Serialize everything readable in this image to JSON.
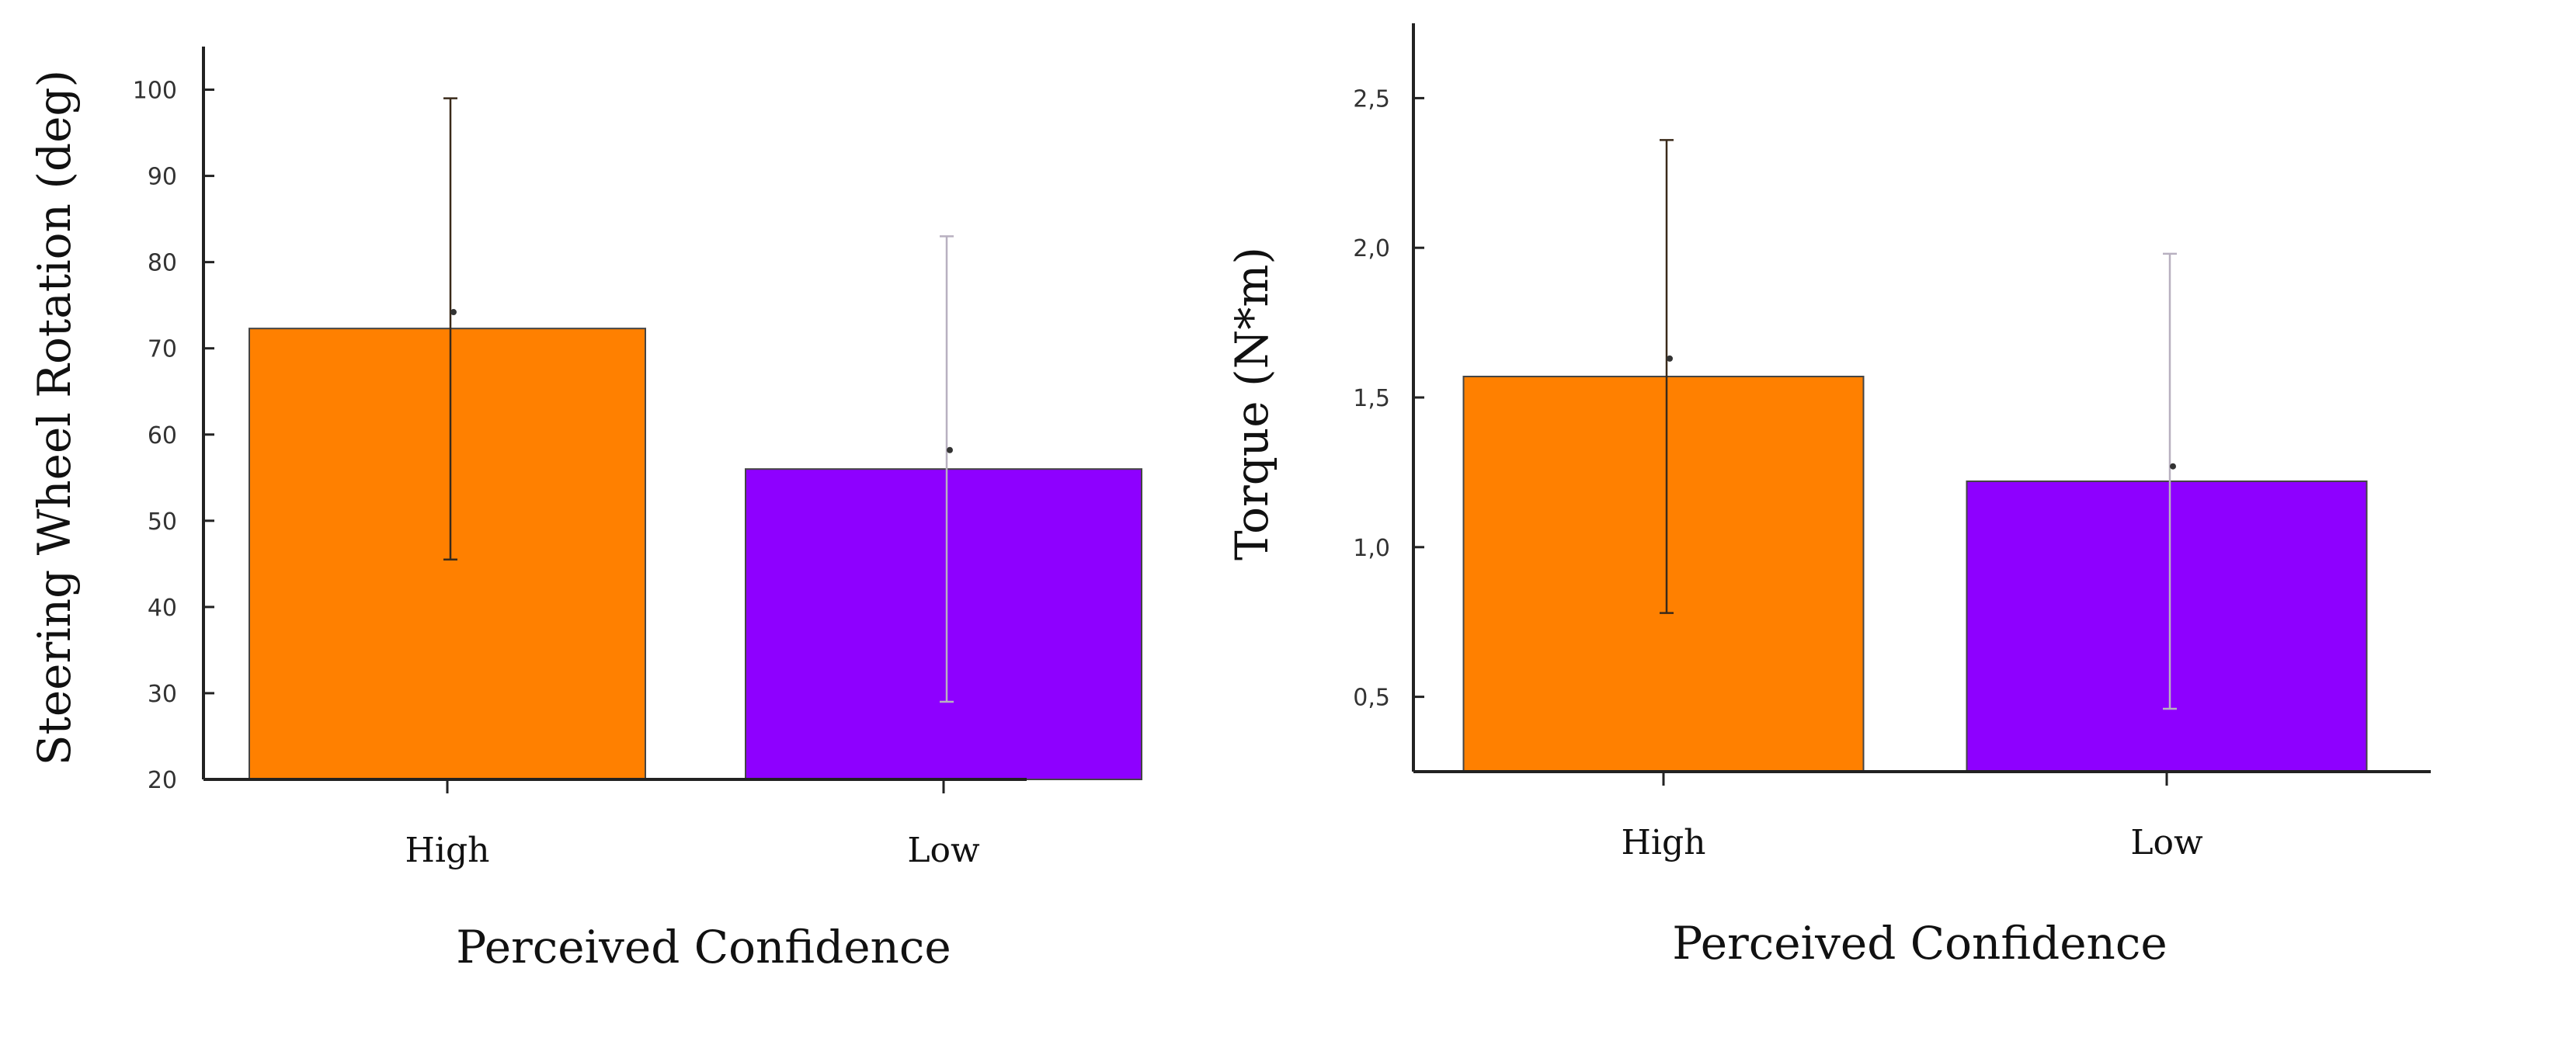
{
  "chart_data": [
    {
      "type": "bar",
      "categories": [
        "High",
        "Low"
      ],
      "values": [
        72.3,
        56.0
      ],
      "error_upper": [
        99.0,
        83.0
      ],
      "error_lower": [
        45.5,
        29.0
      ],
      "mean_markers": [
        74.2,
        58.2
      ],
      "colors": [
        "#ff8000",
        "#8e00ff"
      ],
      "xlabel": "Perceived Confidence",
      "ylabel": "Steering Wheel Rotation (deg)",
      "ylim": [
        20,
        105
      ],
      "yticks": [
        20,
        30,
        40,
        50,
        60,
        70,
        80,
        90,
        100
      ],
      "ytick_labels": [
        "20",
        "30",
        "40",
        "50",
        "60",
        "70",
        "80",
        "90",
        "100"
      ]
    },
    {
      "type": "bar",
      "categories": [
        "High",
        "Low"
      ],
      "values": [
        1.57,
        1.22
      ],
      "error_upper": [
        2.36,
        1.98
      ],
      "error_lower": [
        0.78,
        0.46
      ],
      "mean_markers": [
        1.63,
        1.27
      ],
      "colors": [
        "#ff8000",
        "#8e00ff"
      ],
      "xlabel": "Perceived Confidence",
      "ylabel": "Torque (N*m)",
      "ylim": [
        0.25,
        2.75
      ],
      "yticks": [
        0.5,
        1.0,
        1.5,
        2.0,
        2.5
      ],
      "ytick_labels": [
        "0,5",
        "1,0",
        "1,5",
        "2,0",
        "2,5"
      ]
    }
  ]
}
